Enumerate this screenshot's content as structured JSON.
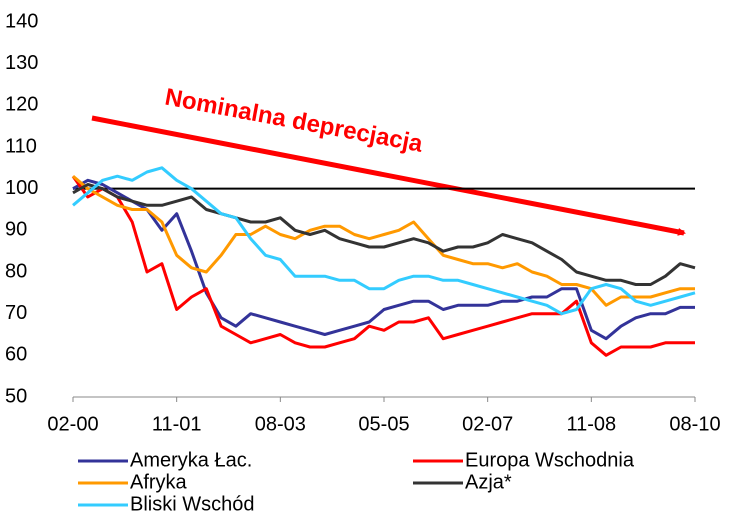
{
  "chart_data": {
    "type": "line",
    "annotation": "Nominalna deprecjacja",
    "categories": [
      "02-00",
      null,
      null,
      null,
      null,
      null,
      null,
      "11-01",
      null,
      null,
      null,
      null,
      null,
      null,
      "08-03",
      null,
      null,
      null,
      null,
      null,
      null,
      "05-05",
      null,
      null,
      null,
      null,
      null,
      null,
      "02-07",
      null,
      null,
      null,
      null,
      null,
      null,
      "11-08",
      null,
      null,
      null,
      null,
      null,
      null,
      "08-10"
    ],
    "ylim": [
      50,
      140
    ],
    "yticks": [
      50,
      60,
      70,
      80,
      90,
      100,
      110,
      120,
      130,
      140
    ],
    "reference_line": 100,
    "series": [
      {
        "name": "Ameryka Łac.",
        "color": "#333399",
        "values": [
          100,
          102,
          101,
          99,
          97,
          95,
          90,
          94,
          85,
          75,
          69,
          67,
          70,
          69,
          68,
          67,
          66,
          65,
          66,
          67,
          68,
          71,
          72,
          73,
          73,
          71,
          72,
          72,
          72,
          73,
          73,
          74,
          74,
          76,
          76,
          66,
          64,
          67,
          69,
          70,
          70,
          71.5,
          71.5
        ]
      },
      {
        "name": "Europa Wschodnia",
        "color": "#ff0000",
        "values": [
          103,
          98,
          100,
          98,
          92,
          80,
          82,
          71,
          74,
          76,
          67,
          65,
          63,
          64,
          65,
          63,
          62,
          62,
          63,
          64,
          67,
          66,
          68,
          68,
          69,
          64,
          65,
          66,
          67,
          68,
          69,
          70,
          70,
          70,
          73,
          63,
          60,
          62,
          62,
          62,
          63,
          63,
          63
        ]
      },
      {
        "name": "Afryka",
        "color": "#ff9900",
        "values": [
          103,
          100,
          98,
          96,
          95,
          95,
          92,
          84,
          81,
          80,
          84,
          89,
          89,
          91,
          89,
          88,
          90,
          91,
          91,
          89,
          88,
          89,
          90,
          92,
          88,
          84,
          83,
          82,
          82,
          81,
          82,
          80,
          79,
          77,
          77,
          76,
          72,
          74,
          74,
          74,
          75,
          76,
          76
        ]
      },
      {
        "name": "Azja*",
        "color": "#333333",
        "values": [
          99,
          101,
          100,
          98,
          97,
          96,
          96,
          97,
          98,
          95,
          94,
          93,
          92,
          92,
          93,
          90,
          89,
          90,
          88,
          87,
          86,
          86,
          87,
          88,
          87,
          85,
          86,
          86,
          87,
          89,
          88,
          87,
          85,
          83,
          80,
          79,
          78,
          78,
          77,
          77,
          79,
          82,
          81
        ]
      },
      {
        "name": "Bliski Wschód",
        "color": "#33ccff",
        "values": [
          96,
          99,
          102,
          103,
          102,
          104,
          105,
          102,
          100,
          97,
          94,
          93,
          88,
          84,
          83,
          79,
          79,
          79,
          78,
          78,
          76,
          76,
          78,
          79,
          79,
          78,
          78,
          77,
          76,
          75,
          74,
          73,
          72,
          70,
          71,
          76,
          77,
          76,
          73,
          72,
          73,
          74,
          75
        ]
      }
    ]
  }
}
